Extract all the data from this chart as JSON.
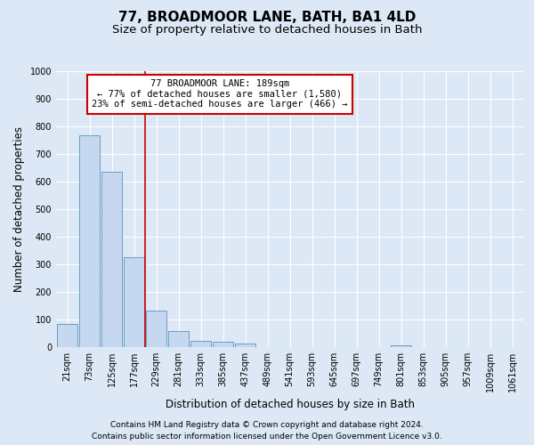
{
  "title": "77, BROADMOOR LANE, BATH, BA1 4LD",
  "subtitle": "Size of property relative to detached houses in Bath",
  "xlabel": "Distribution of detached houses by size in Bath",
  "ylabel": "Number of detached properties",
  "footer_line1": "Contains HM Land Registry data © Crown copyright and database right 2024.",
  "footer_line2": "Contains public sector information licensed under the Open Government Licence v3.0.",
  "bar_labels": [
    "21sqm",
    "73sqm",
    "125sqm",
    "177sqm",
    "229sqm",
    "281sqm",
    "333sqm",
    "385sqm",
    "437sqm",
    "489sqm",
    "541sqm",
    "593sqm",
    "645sqm",
    "697sqm",
    "749sqm",
    "801sqm",
    "853sqm",
    "905sqm",
    "957sqm",
    "1009sqm",
    "1061sqm"
  ],
  "bar_values": [
    83,
    767,
    637,
    327,
    133,
    58,
    23,
    18,
    12,
    0,
    0,
    0,
    0,
    0,
    0,
    5,
    0,
    0,
    0,
    0,
    0
  ],
  "bar_color": "#c5d8ef",
  "bar_edge_color": "#6a9ec5",
  "vertical_line_x": 3.5,
  "vertical_line_color": "#cc0000",
  "annotation_text": "77 BROADMOOR LANE: 189sqm\n← 77% of detached houses are smaller (1,580)\n23% of semi-detached houses are larger (466) →",
  "annotation_box_color": "#cc0000",
  "ylim": [
    0,
    1000
  ],
  "yticks": [
    0,
    100,
    200,
    300,
    400,
    500,
    600,
    700,
    800,
    900,
    1000
  ],
  "background_color": "#dce8f5",
  "plot_bg_color": "#dce8f5",
  "grid_color": "#ffffff",
  "title_fontsize": 11,
  "subtitle_fontsize": 9.5,
  "label_fontsize": 8.5,
  "tick_fontsize": 7,
  "footer_fontsize": 6.5,
  "annotation_fontsize": 7.5
}
